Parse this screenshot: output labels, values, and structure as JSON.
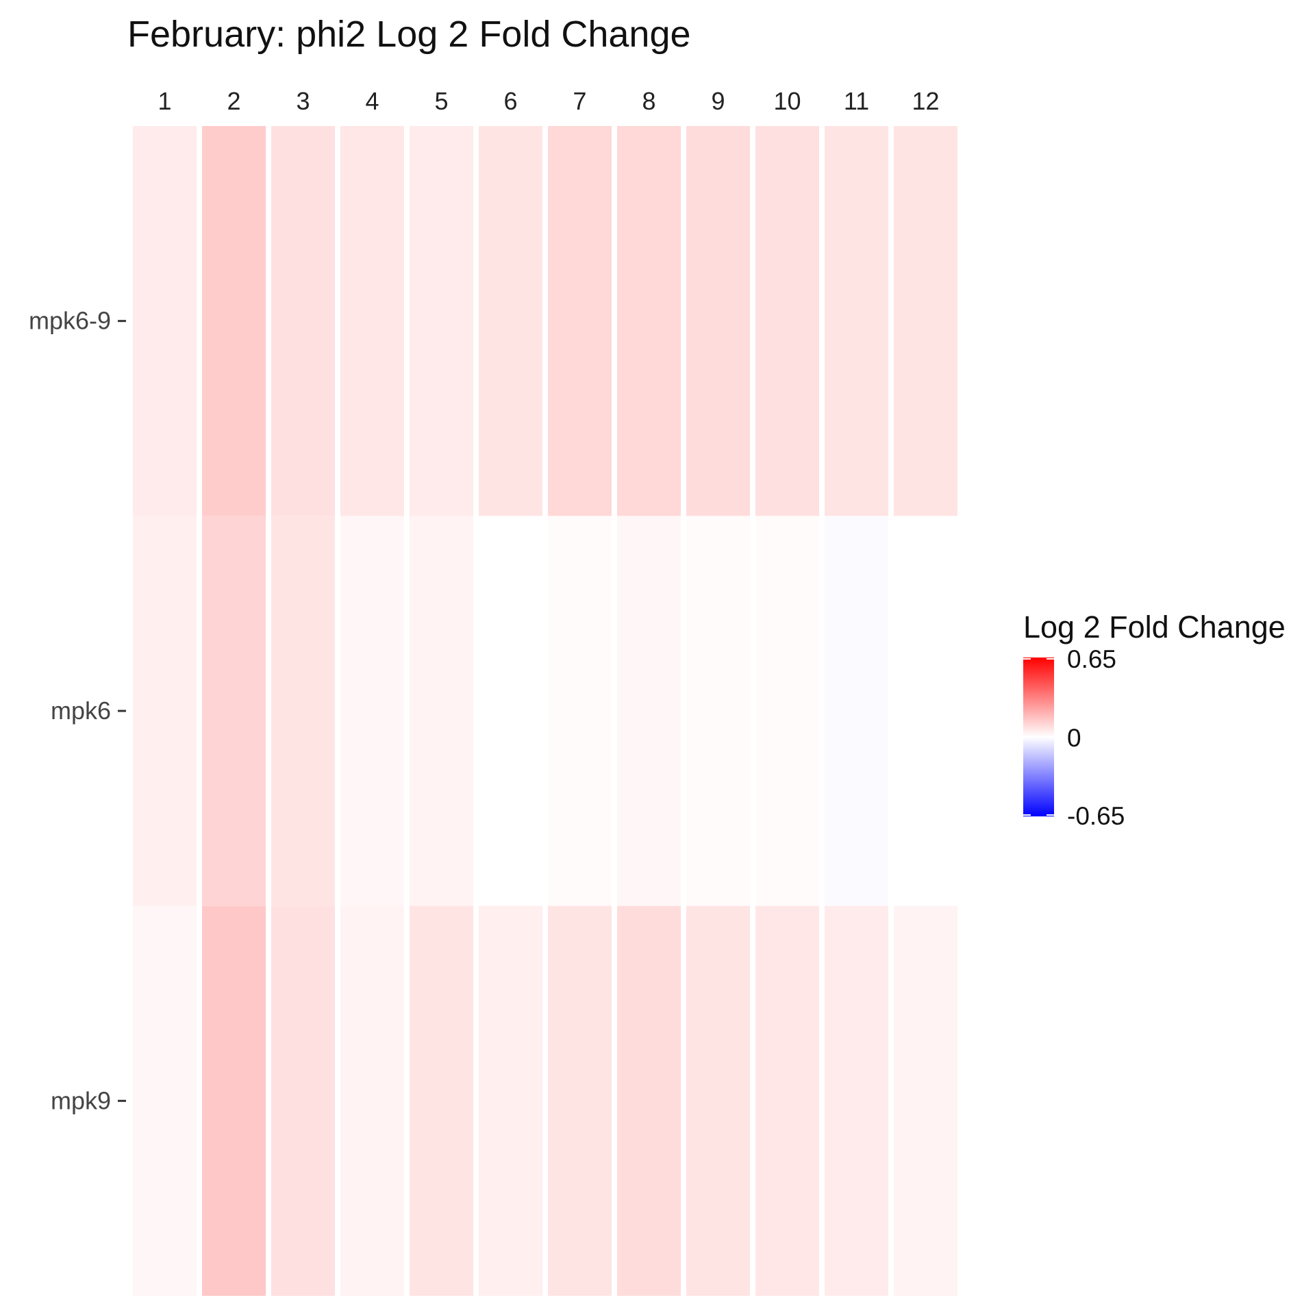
{
  "chart_data": {
    "type": "heatmap",
    "title": "February: phi2 Log 2 Fold Change",
    "xlabel": "",
    "ylabel": "",
    "columns": [
      "1",
      "2",
      "3",
      "4",
      "5",
      "6",
      "7",
      "8",
      "9",
      "10",
      "11",
      "12"
    ],
    "rows": [
      "mpk6-9",
      "mpk6",
      "mpk9"
    ],
    "x_axis_position": "top",
    "values": [
      [
        0.05,
        0.13,
        0.08,
        0.06,
        0.05,
        0.07,
        0.1,
        0.1,
        0.09,
        0.08,
        0.07,
        0.07
      ],
      [
        0.04,
        0.11,
        0.07,
        0.02,
        0.03,
        0.0,
        0.01,
        0.02,
        0.01,
        0.01,
        -0.01,
        0.0
      ],
      [
        0.02,
        0.14,
        0.08,
        0.03,
        0.07,
        0.04,
        0.07,
        0.09,
        0.07,
        0.06,
        0.05,
        0.03
      ]
    ],
    "color_scale": {
      "low": "#0000FF",
      "mid": "#FFFFFF",
      "high": "#FF0000",
      "limits": [
        -0.65,
        0.65
      ]
    },
    "legend": {
      "title": "Log 2 Fold Change",
      "labels": [
        "0.65",
        "0",
        "-0.65"
      ],
      "position": "right"
    },
    "grid": false
  }
}
